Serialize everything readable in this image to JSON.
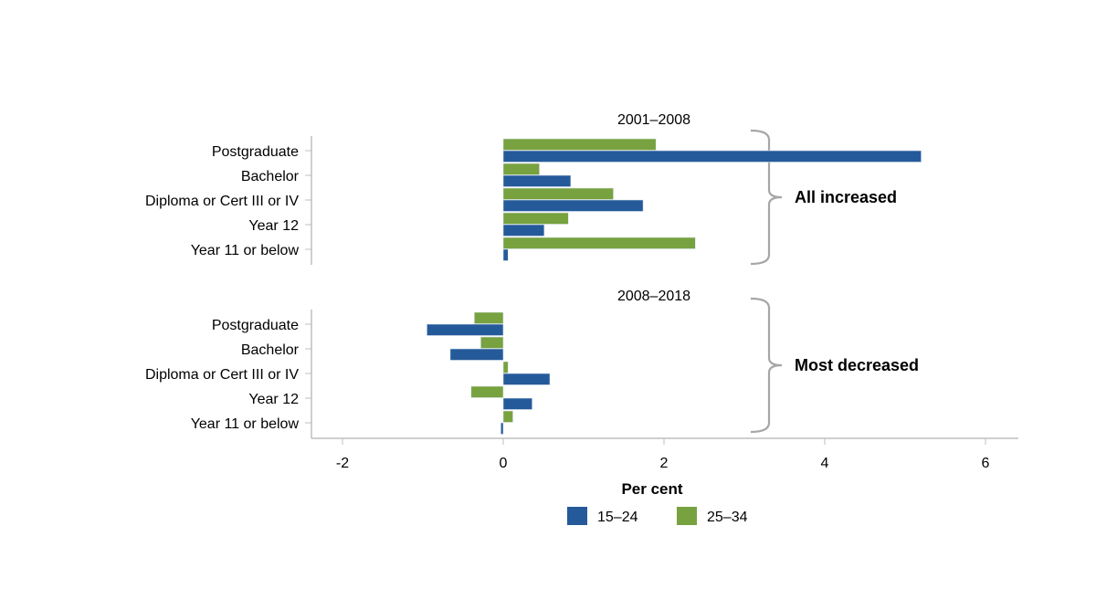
{
  "chart_data": {
    "type": "bar",
    "orientation": "horizontal",
    "xlabel": "Per cent",
    "xlim": [
      -2.4,
      6.4
    ],
    "x_ticks": [
      -2,
      0,
      2,
      4,
      6
    ],
    "grid": false,
    "legend_position": "bottom",
    "series_meta": [
      {
        "name": "15–24",
        "color": "#255a9a"
      },
      {
        "name": "25–34",
        "color": "#77a23f"
      }
    ],
    "panels": [
      {
        "title": "2001–2008",
        "categories": [
          "Postgraduate",
          "Bachelor",
          "Diploma or Cert III or IV",
          "Year 12",
          "Year 11 or below"
        ],
        "series": [
          {
            "name": "15–24",
            "values": [
              5.2,
              0.84,
              1.74,
              0.51,
              0.06
            ]
          },
          {
            "name": "25–34",
            "values": [
              1.9,
              0.45,
              1.37,
              0.81,
              2.39
            ]
          }
        ],
        "annotation": "All increased"
      },
      {
        "title": "2008–2018",
        "categories": [
          "Postgraduate",
          "Bachelor",
          "Diploma or Cert III or IV",
          "Year 12",
          "Year 11 or below"
        ],
        "series": [
          {
            "name": "15–24",
            "values": [
              -0.95,
              -0.66,
              0.58,
              0.36,
              -0.03
            ]
          },
          {
            "name": "25–34",
            "values": [
              -0.36,
              -0.28,
              0.06,
              -0.4,
              0.12
            ]
          }
        ],
        "annotation": "Most decreased"
      }
    ]
  }
}
